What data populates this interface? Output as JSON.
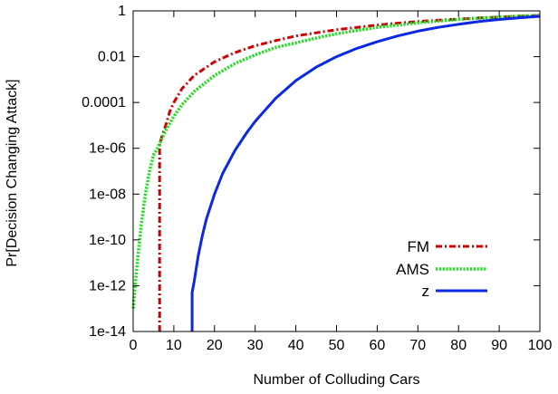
{
  "chart_data": {
    "type": "line",
    "xlabel": "Number of Colluding Cars",
    "ylabel": "Pr[Decision Changing Attack]",
    "xlim": [
      0,
      100
    ],
    "ylim": [
      1e-14,
      1
    ],
    "yscale": "log",
    "grid": false,
    "legend_position": "bottom-right",
    "x_ticks": [
      {
        "value": 0,
        "label": "0"
      },
      {
        "value": 10,
        "label": "10"
      },
      {
        "value": 20,
        "label": "20"
      },
      {
        "value": 30,
        "label": "30"
      },
      {
        "value": 40,
        "label": "40"
      },
      {
        "value": 50,
        "label": "50"
      },
      {
        "value": 60,
        "label": "60"
      },
      {
        "value": 70,
        "label": "70"
      },
      {
        "value": 80,
        "label": "80"
      },
      {
        "value": 90,
        "label": "90"
      },
      {
        "value": 100,
        "label": "100"
      }
    ],
    "y_ticks": [
      {
        "value": 1e-14,
        "label": "1e-14"
      },
      {
        "value": 1e-12,
        "label": "1e-12"
      },
      {
        "value": 1e-10,
        "label": "1e-10"
      },
      {
        "value": 1e-08,
        "label": "1e-08"
      },
      {
        "value": 1e-06,
        "label": "1e-06"
      },
      {
        "value": 0.0001,
        "label": "0.0001"
      },
      {
        "value": 0.01,
        "label": "0.01"
      },
      {
        "value": 1,
        "label": "1"
      }
    ],
    "series": [
      {
        "name": "FM",
        "color": "#d00000",
        "style": "dash-dot",
        "points": [
          [
            6.5,
            1e-14
          ],
          [
            6.5,
            1.5e-06
          ],
          [
            7,
            3e-06
          ],
          [
            8,
            1e-05
          ],
          [
            9,
            4e-05
          ],
          [
            10,
            0.0001
          ],
          [
            12,
            0.0004
          ],
          [
            15,
            0.0015
          ],
          [
            20,
            0.006
          ],
          [
            25,
            0.015
          ],
          [
            30,
            0.03
          ],
          [
            35,
            0.05
          ],
          [
            40,
            0.08
          ],
          [
            45,
            0.11
          ],
          [
            50,
            0.15
          ],
          [
            55,
            0.19
          ],
          [
            60,
            0.24
          ],
          [
            65,
            0.29
          ],
          [
            70,
            0.34
          ],
          [
            75,
            0.39
          ],
          [
            80,
            0.44
          ],
          [
            85,
            0.49
          ],
          [
            90,
            0.54
          ],
          [
            95,
            0.59
          ],
          [
            100,
            0.63
          ]
        ]
      },
      {
        "name": "AMS",
        "color": "#22dd22",
        "style": "dotted",
        "points": [
          [
            0,
            1e-13
          ],
          [
            1,
            1e-11
          ],
          [
            2,
            5e-10
          ],
          [
            3,
            1e-08
          ],
          [
            4,
            1e-07
          ],
          [
            5,
            5e-07
          ],
          [
            6,
            1e-06
          ],
          [
            8,
            6e-06
          ],
          [
            10,
            2.5e-05
          ],
          [
            12,
            8e-05
          ],
          [
            15,
            0.0003
          ],
          [
            20,
            0.0015
          ],
          [
            25,
            0.005
          ],
          [
            30,
            0.012
          ],
          [
            35,
            0.025
          ],
          [
            40,
            0.04
          ],
          [
            45,
            0.065
          ],
          [
            50,
            0.1
          ],
          [
            55,
            0.14
          ],
          [
            60,
            0.19
          ],
          [
            65,
            0.24
          ],
          [
            70,
            0.3
          ],
          [
            75,
            0.36
          ],
          [
            80,
            0.42
          ],
          [
            85,
            0.48
          ],
          [
            90,
            0.54
          ],
          [
            95,
            0.59
          ],
          [
            100,
            0.64
          ]
        ]
      },
      {
        "name": "z",
        "color": "#0a28e6",
        "style": "solid",
        "points": [
          [
            14.5,
            1e-14
          ],
          [
            14.5,
            5e-13
          ],
          [
            15,
            1.5e-12
          ],
          [
            16,
            2e-11
          ],
          [
            17,
            1.5e-10
          ],
          [
            18,
            8e-10
          ],
          [
            20,
            1e-08
          ],
          [
            22,
            8e-08
          ],
          [
            25,
            8e-07
          ],
          [
            28,
            5e-06
          ],
          [
            30,
            1.5e-05
          ],
          [
            35,
            0.00015
          ],
          [
            40,
            0.0009
          ],
          [
            45,
            0.0035
          ],
          [
            50,
            0.01
          ],
          [
            55,
            0.023
          ],
          [
            60,
            0.045
          ],
          [
            65,
            0.08
          ],
          [
            70,
            0.13
          ],
          [
            75,
            0.19
          ],
          [
            80,
            0.26
          ],
          [
            85,
            0.34
          ],
          [
            90,
            0.42
          ],
          [
            95,
            0.5
          ],
          [
            100,
            0.58
          ]
        ]
      }
    ]
  }
}
